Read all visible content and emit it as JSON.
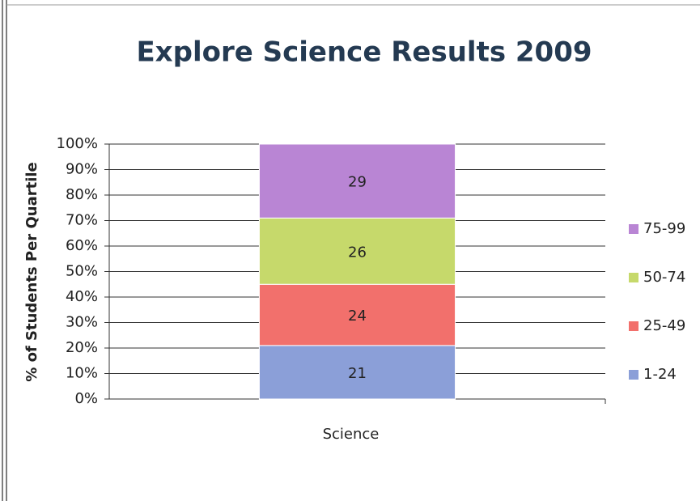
{
  "chart_data": {
    "type": "stacked_bar",
    "title": "Explore Science Results  2009",
    "y_label": "% of Students Per Quartile",
    "categories": [
      "Science"
    ],
    "series": [
      {
        "name": "1-24",
        "color": "#8b9fd8",
        "values": [
          21
        ]
      },
      {
        "name": "25-49",
        "color": "#f2706c",
        "values": [
          24
        ]
      },
      {
        "name": "50-74",
        "color": "#c6d96b",
        "values": [
          26
        ]
      },
      {
        "name": "75-99",
        "color": "#b985d4",
        "values": [
          29
        ]
      }
    ],
    "ylim": [
      0,
      100
    ],
    "yticks": [
      {
        "value": 0,
        "label": "0%"
      },
      {
        "value": 10,
        "label": "10%"
      },
      {
        "value": 20,
        "label": "20%"
      },
      {
        "value": 30,
        "label": "30%"
      },
      {
        "value": 40,
        "label": "40%"
      },
      {
        "value": 50,
        "label": "50%"
      },
      {
        "value": 60,
        "label": "60%"
      },
      {
        "value": 70,
        "label": "70%"
      },
      {
        "value": 80,
        "label": "80%"
      },
      {
        "value": 90,
        "label": "90%"
      },
      {
        "value": 100,
        "label": "100%"
      }
    ],
    "grid": true,
    "legend": "right"
  }
}
